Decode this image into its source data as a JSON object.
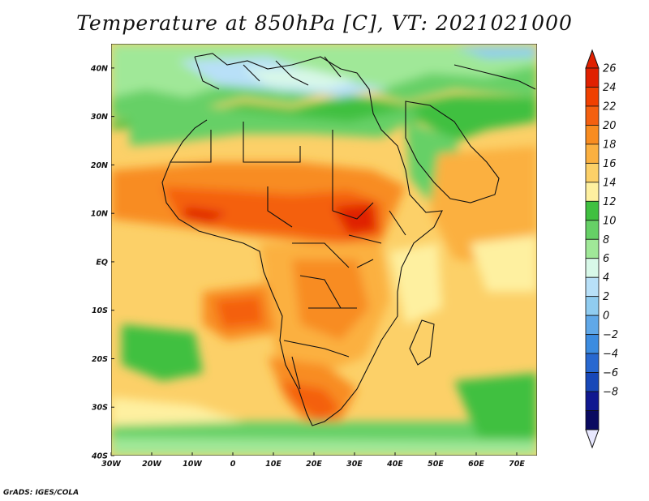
{
  "title": "Temperature at 850hPa [C], VT: 2021021000",
  "credit": "GrADS: IGES/COLA",
  "map": {
    "lat_ticks": [
      "40N",
      "30N",
      "20N",
      "10N",
      "EQ",
      "10S",
      "20S",
      "30S",
      "40S"
    ],
    "lon_ticks": [
      "30W",
      "20W",
      "10W",
      "0",
      "10E",
      "20E",
      "30E",
      "40E",
      "50E",
      "60E",
      "70E"
    ],
    "lat_range": [
      -40,
      45
    ],
    "lon_range": [
      -30,
      75
    ]
  },
  "colorbar": {
    "labels": [
      "26",
      "24",
      "22",
      "20",
      "18",
      "16",
      "14",
      "12",
      "10",
      "8",
      "6",
      "4",
      "2",
      "0",
      "−2",
      "−4",
      "−6",
      "−8"
    ],
    "colors": [
      "#e02000",
      "#f04000",
      "#f46010",
      "#f88c20",
      "#fbb040",
      "#fcd068",
      "#fef0a0",
      "#40c040",
      "#66d066",
      "#a0e898",
      "#d8f8e8",
      "#b8e0f8",
      "#90ccf0",
      "#60a8e8",
      "#3c8ce0",
      "#2868d0",
      "#1848b8",
      "#101890",
      "#0a0a60"
    ],
    "min_label": "−8",
    "max_label": "26"
  }
}
